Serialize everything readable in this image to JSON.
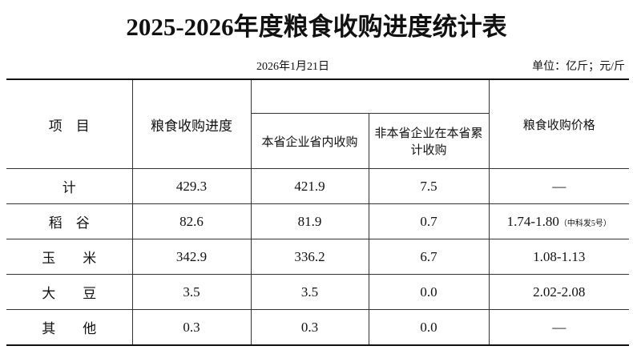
{
  "header": {
    "title": "2025-2026年度粮食收购进度统计表",
    "date": "2026年1月21日",
    "unit": "单位：亿斤；元/斤"
  },
  "table": {
    "columns": {
      "item": "项　目",
      "progress": "粮食收购进度",
      "local": "本省企业省内收购",
      "nonlocal": "非本省企业在本省累计收购",
      "price": "粮食收购价格"
    },
    "rows": [
      [
        "计",
        "429.3",
        "421.9",
        "7.5",
        "—"
      ],
      [
        "稻　谷",
        "82.6",
        "81.9",
        "0.7",
        "1.74-1.80"
      ],
      [
        "玉　　米",
        "342.9",
        "336.2",
        "6.7",
        "1.08-1.13"
      ],
      [
        "大　　豆",
        "3.5",
        "3.5",
        "0.0",
        "2.02-2.08"
      ],
      [
        "其　　他",
        "0.3",
        "0.3",
        "0.0",
        "—"
      ]
    ],
    "price_note": "（中科发5号）"
  }
}
